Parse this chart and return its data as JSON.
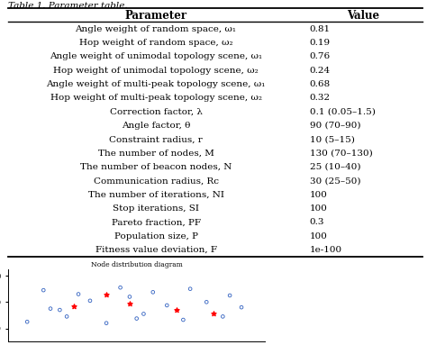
{
  "title": "Table 1. Parameter table.",
  "headers": [
    "Parameter",
    "Value"
  ],
  "rows": [
    [
      "Angle weight of random space, ω₁",
      "0.81"
    ],
    [
      "Hop weight of random space, ω₂",
      "0.19"
    ],
    [
      "Angle weight of unimodal topology scene, ω₁",
      "0.76"
    ],
    [
      "Hop weight of unimodal topology scene, ω₂",
      "0.24"
    ],
    [
      "Angle weight of multi-peak topology scene, ω₁",
      "0.68"
    ],
    [
      "Hop weight of multi-peak topology scene, ω₂",
      "0.32"
    ],
    [
      "Correction factor, λ",
      "0.1 (0.05–1.5)"
    ],
    [
      "Angle factor, θ",
      "90 (70–90)"
    ],
    [
      "Constraint radius, r",
      "10 (5–15)"
    ],
    [
      "The number of nodes, M",
      "130 (70–130)"
    ],
    [
      "The number of beacon nodes, N",
      "25 (10–40)"
    ],
    [
      "Communication radius, Rc",
      "30 (25–50)"
    ],
    [
      "The number of iterations, NI",
      "100"
    ],
    [
      "Stop iterations, SI",
      "100"
    ],
    [
      "Pareto fraction, PF",
      "0.3"
    ],
    [
      "Population size, P",
      "100"
    ],
    [
      "Fitness value deviation, F",
      "1e-100"
    ]
  ],
  "bg_color": "#ffffff",
  "text_color": "#000000",
  "line_color": "#000000",
  "title_fontsize": 7.5,
  "header_fontsize": 8.5,
  "cell_fontsize": 7.5,
  "fig_width": 4.74,
  "fig_height": 3.83
}
